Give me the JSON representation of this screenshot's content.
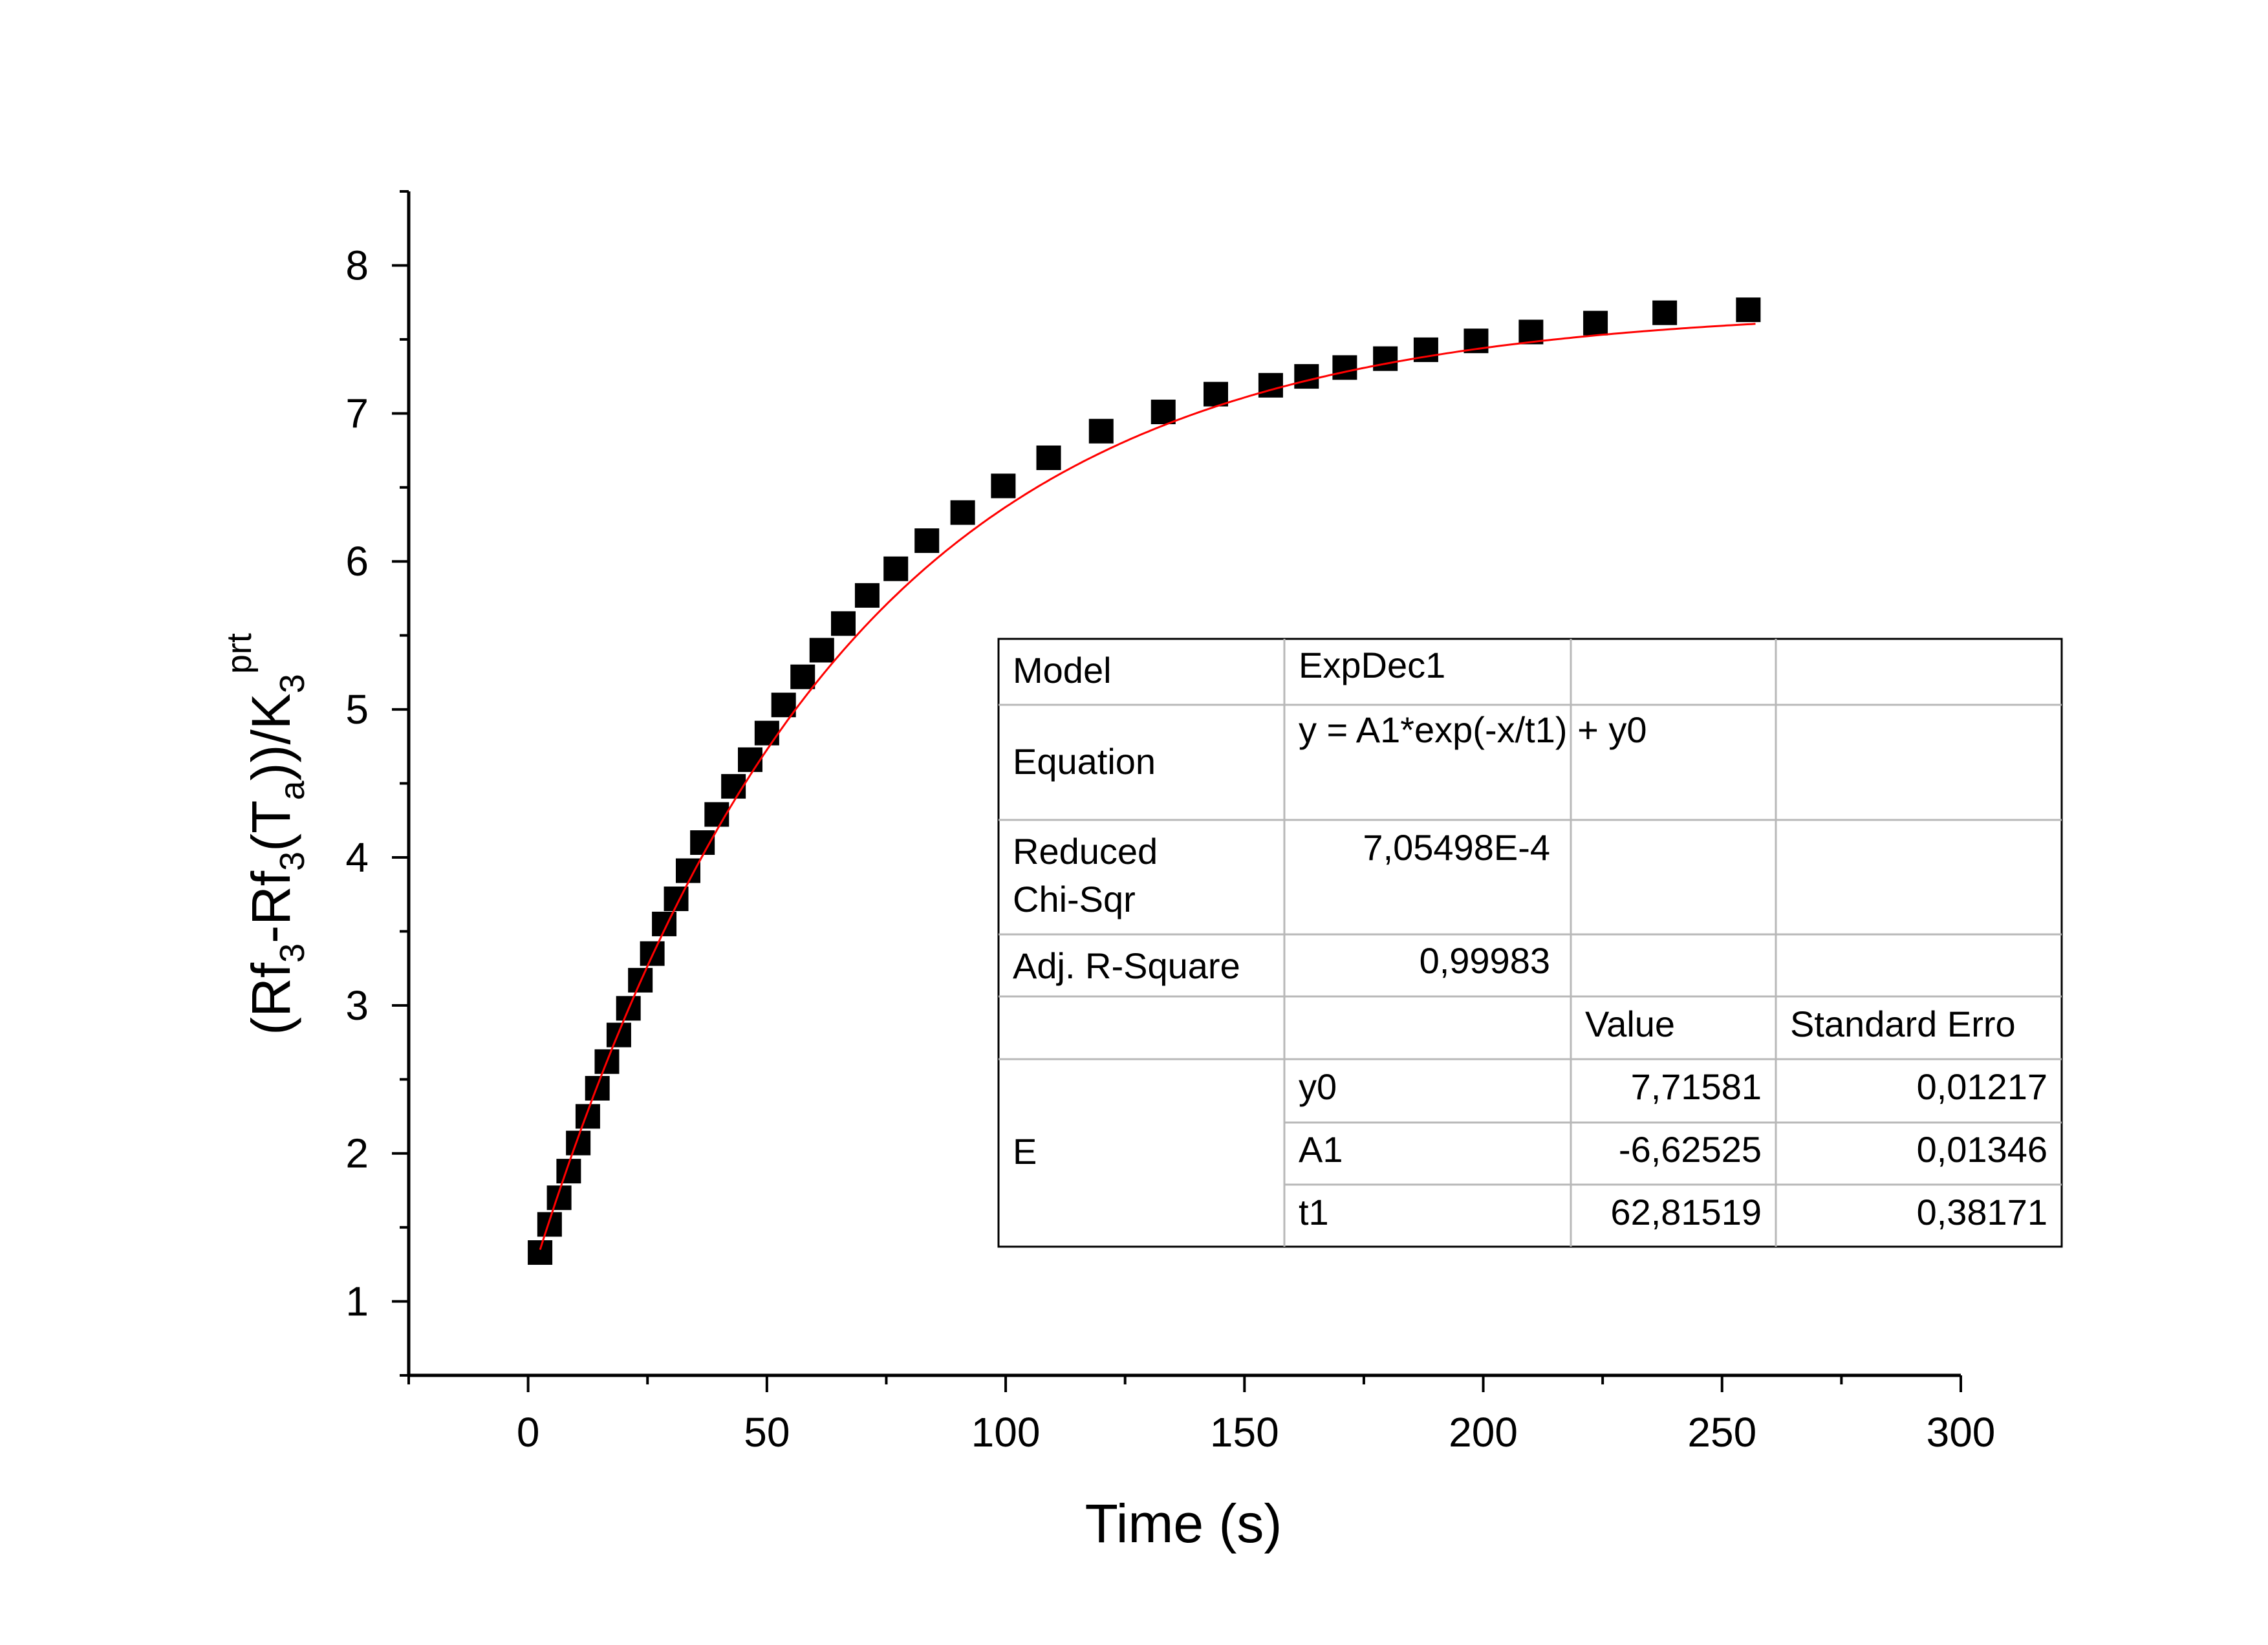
{
  "chart_data": {
    "type": "scatter",
    "xlabel": "Time (s)",
    "ylabel": {
      "parts": [
        {
          "t": "(Rf",
          "s": "base"
        },
        {
          "t": "3",
          "s": "sub"
        },
        {
          "t": "-Rf",
          "s": "base"
        },
        {
          "t": "3",
          "s": "sub"
        },
        {
          "t": "(T",
          "s": "base"
        },
        {
          "t": "a",
          "s": "sub"
        },
        {
          "t": "))/K",
          "s": "base"
        },
        {
          "t": "3",
          "s": "sub"
        },
        {
          "t": "prt",
          "s": "sup"
        }
      ]
    },
    "xlim": [
      -25,
      300
    ],
    "ylim": [
      0.5,
      8.5
    ],
    "xticks": [
      0,
      50,
      100,
      150,
      200,
      250,
      300
    ],
    "xtick_labels": [
      "0",
      "50",
      "100",
      "150",
      "200",
      "250",
      "300"
    ],
    "yticks": [
      1,
      2,
      3,
      4,
      5,
      6,
      7,
      8
    ],
    "ytick_labels": [
      "1",
      "2",
      "3",
      "4",
      "5",
      "6",
      "7",
      "8"
    ],
    "x_minor_step": 25,
    "y_minor_step": 0.5,
    "grid": false,
    "colors": {
      "points": "#000000",
      "fit": "#ff0000",
      "axes": "#000000"
    },
    "series": [
      {
        "marker": "square",
        "x": [
          2.5,
          4.5,
          6.5,
          8.5,
          10.5,
          12.5,
          14.5,
          16.5,
          19,
          21,
          23.5,
          26,
          28.5,
          31,
          33.5,
          36.5,
          39.5,
          43,
          46.5,
          50,
          53.5,
          57.5,
          61.5,
          66,
          71,
          77,
          83.5,
          91,
          99.5,
          109,
          120,
          133,
          144,
          155.5,
          163,
          171,
          179.5,
          188,
          198.5,
          210,
          223.5,
          238,
          255.5
        ],
        "y": [
          1.33,
          1.52,
          1.7,
          1.88,
          2.07,
          2.25,
          2.44,
          2.62,
          2.8,
          2.98,
          3.17,
          3.35,
          3.55,
          3.72,
          3.91,
          4.1,
          4.29,
          4.48,
          4.66,
          4.84,
          5.03,
          5.22,
          5.4,
          5.58,
          5.77,
          5.95,
          6.14,
          6.33,
          6.51,
          6.7,
          6.88,
          7.01,
          7.13,
          7.19,
          7.25,
          7.31,
          7.37,
          7.43,
          7.49,
          7.55,
          7.61,
          7.68,
          7.7
        ]
      }
    ],
    "fit": {
      "model_params": {
        "y0": 7.71581,
        "A1": -6.62525,
        "t1": 62.81519
      },
      "x_range": [
        2.5,
        257
      ]
    }
  },
  "stats_table": {
    "rows": [
      [
        "Model",
        "ExpDec1",
        "",
        ""
      ],
      [
        "Equation",
        "y = A1*exp(-x/t1) + y0",
        "",
        ""
      ],
      [
        "Reduced Chi-Sqr",
        "7,05498E-4",
        "",
        ""
      ],
      [
        "Adj. R-Square",
        "0,99983",
        "",
        ""
      ],
      [
        "",
        "",
        "Value",
        "Standard Erro"
      ],
      [
        "E",
        "y0",
        "7,71581",
        "0,01217"
      ],
      [
        "",
        "A1",
        "-6,62525",
        "0,01346"
      ],
      [
        "",
        "t1",
        "62,81519",
        "0,38171"
      ]
    ]
  }
}
